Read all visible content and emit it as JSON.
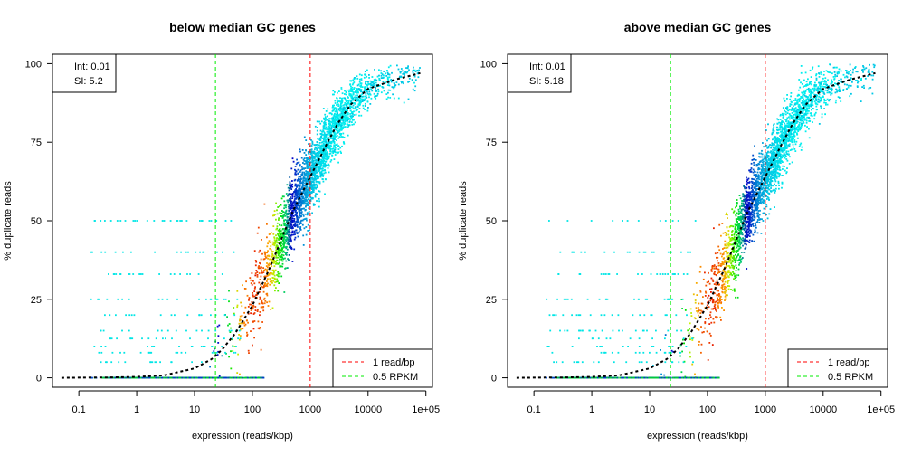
{
  "chart_data": [
    {
      "type": "scatter",
      "title": "below median GC genes",
      "xlabel": "expression (reads/kbp)",
      "ylabel": "% duplicate reads",
      "x_scale": "log",
      "x_ticks": [
        {
          "value": 0.1,
          "label": "0.1"
        },
        {
          "value": 1,
          "label": "1"
        },
        {
          "value": 10,
          "label": "10"
        },
        {
          "value": 100,
          "label": "100"
        },
        {
          "value": 1000,
          "label": "1000"
        },
        {
          "value": 10000,
          "label": "10000"
        },
        {
          "value": 100000,
          "label": "1e+05"
        }
      ],
      "y_ticks": [
        {
          "value": 0,
          "label": "0"
        },
        {
          "value": 25,
          "label": "25"
        },
        {
          "value": 50,
          "label": "50"
        },
        {
          "value": 75,
          "label": "75"
        },
        {
          "value": 100,
          "label": "100"
        }
      ],
      "xlim": [
        0.035,
        130000
      ],
      "ylim": [
        -3,
        103
      ],
      "fit_params": {
        "int_label": "Int: 0.01",
        "sl_label": "SI: 5.2"
      },
      "fit_curve": {
        "x": [
          0.05,
          0.1,
          0.3,
          1,
          3,
          10,
          20,
          30,
          50,
          100,
          200,
          300,
          500,
          1000,
          2000,
          3000,
          5000,
          10000,
          30000,
          80000
        ],
        "y": [
          0,
          0.05,
          0.1,
          0.3,
          0.8,
          3,
          6,
          9,
          14,
          23,
          35,
          43,
          53,
          64,
          75,
          81,
          87,
          92,
          95,
          97
        ]
      },
      "vlines": [
        {
          "x": 1000,
          "color": "#ff0000",
          "label": "1 read/bp"
        },
        {
          "x": 23,
          "color": "#00ee00",
          "label": "0.5 RPKM"
        }
      ],
      "legend_position": "bottom-right"
    },
    {
      "type": "scatter",
      "title": "above median GC genes",
      "xlabel": "expression (reads/kbp)",
      "ylabel": "% duplicate reads",
      "x_scale": "log",
      "x_ticks": [
        {
          "value": 0.1,
          "label": "0.1"
        },
        {
          "value": 1,
          "label": "1"
        },
        {
          "value": 10,
          "label": "10"
        },
        {
          "value": 100,
          "label": "100"
        },
        {
          "value": 1000,
          "label": "1000"
        },
        {
          "value": 10000,
          "label": "10000"
        },
        {
          "value": 100000,
          "label": "1e+05"
        }
      ],
      "y_ticks": [
        {
          "value": 0,
          "label": "0"
        },
        {
          "value": 25,
          "label": "25"
        },
        {
          "value": 50,
          "label": "50"
        },
        {
          "value": 75,
          "label": "75"
        },
        {
          "value": 100,
          "label": "100"
        }
      ],
      "xlim": [
        0.035,
        130000
      ],
      "ylim": [
        -3,
        103
      ],
      "fit_params": {
        "int_label": "Int: 0.01",
        "sl_label": "SI: 5.18"
      },
      "fit_curve": {
        "x": [
          0.05,
          0.1,
          0.3,
          1,
          3,
          10,
          20,
          30,
          50,
          100,
          200,
          300,
          500,
          1000,
          2000,
          3000,
          5000,
          10000,
          30000,
          80000
        ],
        "y": [
          0,
          0.05,
          0.1,
          0.3,
          0.8,
          3,
          6,
          9,
          14,
          23,
          35,
          43,
          53,
          64,
          75,
          81,
          87,
          92,
          95,
          97
        ]
      },
      "vlines": [
        {
          "x": 1000,
          "color": "#ff0000",
          "label": "1 read/bp"
        },
        {
          "x": 23,
          "color": "#00ee00",
          "label": "0.5 RPKM"
        }
      ],
      "legend_position": "bottom-right"
    }
  ]
}
